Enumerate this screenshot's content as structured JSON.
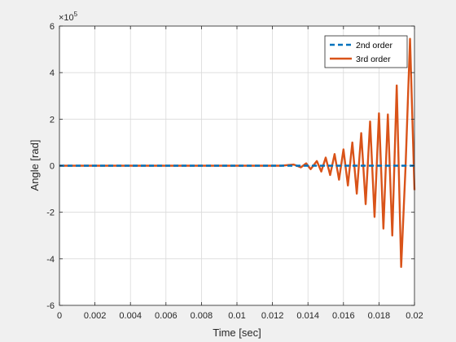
{
  "chart_data": {
    "type": "line",
    "xlabel": "Time [sec]",
    "ylabel": "Angle [rad]",
    "exponent_label": "×10",
    "exponent_power": "5",
    "xlim": [
      0,
      0.02
    ],
    "ylim": [
      -600000,
      600000
    ],
    "x_ticks": [
      "0",
      "0.002",
      "0.004",
      "0.006",
      "0.008",
      "0.01",
      "0.012",
      "0.014",
      "0.016",
      "0.018",
      "0.02"
    ],
    "y_ticks": [
      "-6",
      "-4",
      "-2",
      "0",
      "2",
      "4",
      "6"
    ],
    "grid": true,
    "legend_position": "top-right",
    "series": [
      {
        "name": "2nd order",
        "style": "dashed",
        "color": "#0072BD",
        "x": [
          0,
          0.002,
          0.004,
          0.006,
          0.008,
          0.01,
          0.012,
          0.014,
          0.016,
          0.018,
          0.02
        ],
        "y": [
          0,
          0,
          0,
          0,
          0,
          0,
          0,
          0,
          0,
          0,
          0
        ]
      },
      {
        "name": "3rd order",
        "style": "solid",
        "color": "#D95319",
        "x": [
          0,
          0.0125,
          0.0132,
          0.0136,
          0.0139,
          0.01415,
          0.0145,
          0.01475,
          0.015,
          0.01525,
          0.0155,
          0.01575,
          0.016,
          0.01625,
          0.0165,
          0.01675,
          0.017,
          0.01725,
          0.0175,
          0.01775,
          0.018,
          0.01825,
          0.0185,
          0.01875,
          0.019,
          0.01925,
          0.0195,
          0.01975,
          0.02
        ],
        "y": [
          0,
          0,
          5000,
          -7000,
          10000,
          -15000,
          20000,
          -25000,
          35000,
          -40000,
          50000,
          -60000,
          70000,
          -85000,
          100000,
          -120000,
          140000,
          -165000,
          190000,
          -220000,
          225000,
          -270000,
          220000,
          -300000,
          345000,
          -435000,
          0,
          545000,
          -105000
        ]
      }
    ]
  }
}
